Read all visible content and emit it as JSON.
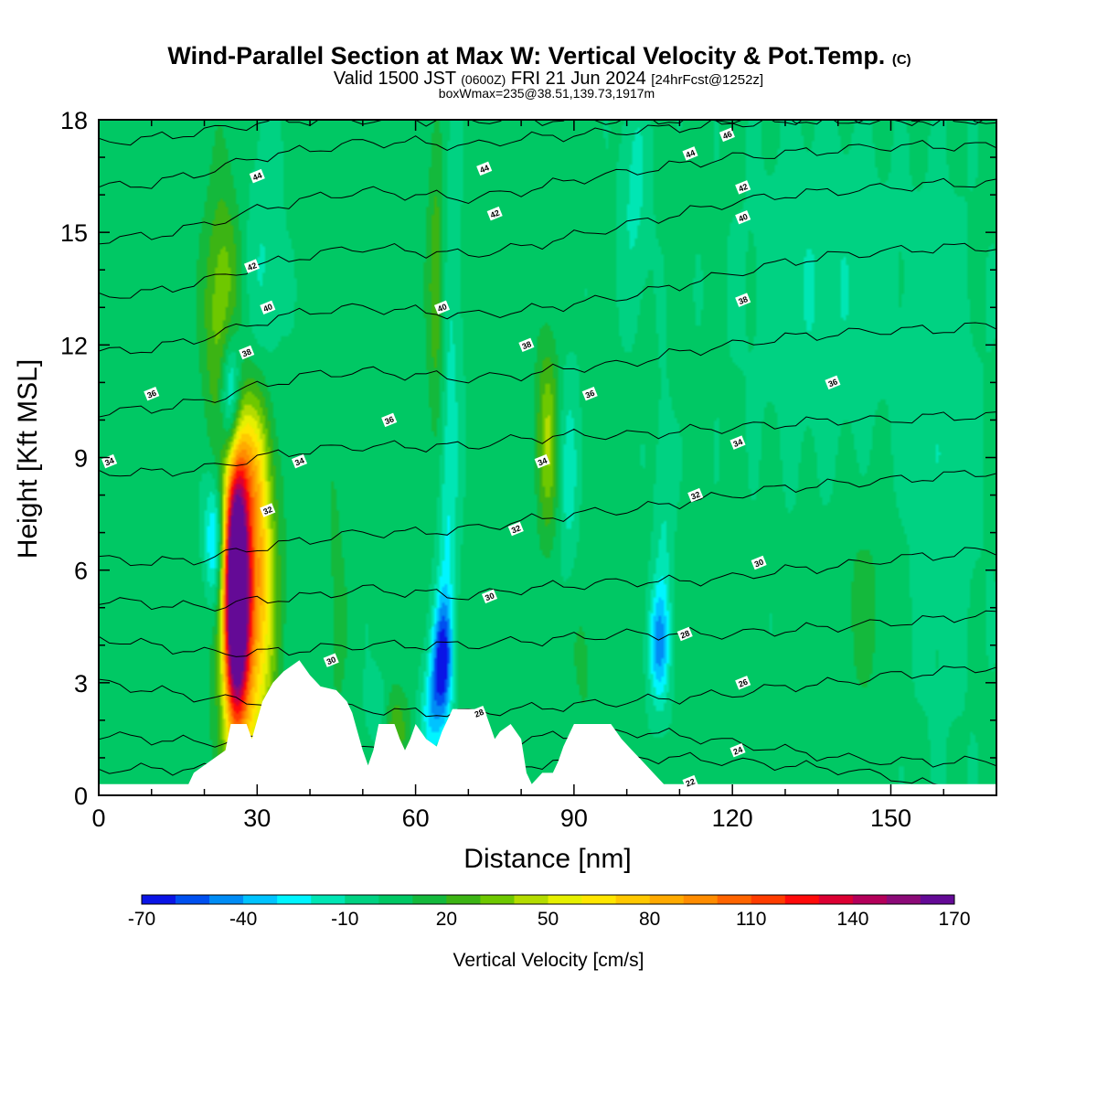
{
  "chart_data": {
    "type": "heatmap",
    "title": "Wind-Parallel Section at Max W: Vertical Velocity & Pot.Temp.",
    "title_mark": "(C)",
    "subtitle_parts": [
      "Valid 1500 JST",
      "(0600Z)",
      "FRI 21 Jun 2024",
      "[24hrFcst@1252z]"
    ],
    "subtitle2": "boxWmax=235@38.51,139.73,1917m",
    "xlabel": "Distance [nm]",
    "ylabel": "Height [Kft MSL]",
    "xlim": [
      0,
      170
    ],
    "ylim": [
      0,
      18
    ],
    "x_ticks": [
      "0",
      "30",
      "60",
      "90",
      "120",
      "150"
    ],
    "y_ticks": [
      "0",
      "3",
      "6",
      "9",
      "12",
      "15",
      "18"
    ],
    "x_tick_values": [
      0,
      30,
      60,
      90,
      120,
      150
    ],
    "y_tick_values": [
      0,
      3,
      6,
      9,
      12,
      15,
      18
    ],
    "colorbar": {
      "label": "Vertical Velocity [cm/s]",
      "tick_labels": [
        "-70",
        "-40",
        "-10",
        "20",
        "50",
        "80",
        "110",
        "140",
        "170"
      ],
      "tick_values": [
        -70,
        -40,
        -10,
        20,
        50,
        80,
        110,
        140,
        170
      ],
      "levels": [
        -70,
        -60,
        -50,
        -40,
        -30,
        -20,
        -10,
        0,
        10,
        20,
        30,
        40,
        50,
        60,
        70,
        80,
        90,
        100,
        110,
        120,
        130,
        140,
        150,
        160,
        170
      ],
      "colors": [
        "#0a14e6",
        "#0050f0",
        "#008cf5",
        "#00c3ff",
        "#00f5ff",
        "#00e6b4",
        "#00d282",
        "#00c864",
        "#14b93c",
        "#3cb414",
        "#6ec800",
        "#b4dc00",
        "#e6f000",
        "#ffe600",
        "#ffc800",
        "#ffaa00",
        "#ff8c00",
        "#ff6400",
        "#ff3c00",
        "#ff0a0a",
        "#dc0032",
        "#b4005a",
        "#8c0a78",
        "#640a96"
      ]
    },
    "terrain": [
      [
        0,
        0.3
      ],
      [
        17,
        0.3
      ],
      [
        18,
        0.6
      ],
      [
        21,
        0.9
      ],
      [
        24,
        1.2
      ],
      [
        25,
        1.9
      ],
      [
        28,
        1.9
      ],
      [
        29,
        1.5
      ],
      [
        31,
        2.5
      ],
      [
        33,
        3.0
      ],
      [
        35,
        3.3
      ],
      [
        38,
        3.6
      ],
      [
        40,
        3.2
      ],
      [
        42,
        2.9
      ],
      [
        45,
        2.8
      ],
      [
        47,
        2.5
      ],
      [
        48,
        2.2
      ],
      [
        49,
        1.7
      ],
      [
        50,
        1.2
      ],
      [
        51,
        0.8
      ],
      [
        52,
        1.2
      ],
      [
        53,
        1.9
      ],
      [
        56,
        1.9
      ],
      [
        57,
        1.5
      ],
      [
        58,
        1.2
      ],
      [
        59,
        1.5
      ],
      [
        60,
        1.9
      ],
      [
        62,
        1.5
      ],
      [
        64,
        1.3
      ],
      [
        65,
        1.7
      ],
      [
        67,
        2.3
      ],
      [
        73,
        2.3
      ],
      [
        74,
        1.9
      ],
      [
        75,
        1.5
      ],
      [
        76,
        1.7
      ],
      [
        78,
        1.9
      ],
      [
        80,
        1.5
      ],
      [
        81,
        0.6
      ],
      [
        82,
        0.3
      ],
      [
        84,
        0.6
      ],
      [
        86,
        0.6
      ],
      [
        87,
        0.9
      ],
      [
        88,
        1.3
      ],
      [
        89,
        1.6
      ],
      [
        90,
        1.9
      ],
      [
        97,
        1.9
      ],
      [
        99,
        1.5
      ],
      [
        101,
        1.2
      ],
      [
        103,
        0.9
      ],
      [
        105,
        0.6
      ],
      [
        107,
        0.3
      ],
      [
        170,
        0.3
      ]
    ],
    "features": [
      {
        "x": 26.0,
        "y": 5.5,
        "sx": 1.6,
        "sy": 2.4,
        "v": 205
      },
      {
        "x": 30.0,
        "y": 6.5,
        "sx": 2.4,
        "sy": 3.2,
        "v": 62
      },
      {
        "x": 27.5,
        "y": 4.0,
        "sx": 3.5,
        "sy": 3.2,
        "v": 40
      },
      {
        "x": 22.0,
        "y": 6.8,
        "sx": 1.4,
        "sy": 1.2,
        "v": -45
      },
      {
        "x": 25.0,
        "y": 10.5,
        "sx": 1.4,
        "sy": 1.3,
        "v": -62
      },
      {
        "x": 23.5,
        "y": 12.8,
        "sx": 2.4,
        "sy": 2.4,
        "v": 40
      },
      {
        "x": 28.0,
        "y": 9.0,
        "sx": 2.5,
        "sy": 1.3,
        "v": 30
      },
      {
        "x": 29.0,
        "y": 11.0,
        "sx": 3.0,
        "sy": 3.0,
        "v": -16
      },
      {
        "x": 32.0,
        "y": 14.5,
        "sx": 2.0,
        "sy": 3.0,
        "v": -10
      },
      {
        "x": 65.0,
        "y": 3.6,
        "sx": 1.3,
        "sy": 1.1,
        "v": -62
      },
      {
        "x": 63.0,
        "y": 2.2,
        "sx": 1.5,
        "sy": 1.0,
        "v": -32
      },
      {
        "x": 66.0,
        "y": 6.0,
        "sx": 1.2,
        "sy": 2.5,
        "v": -20
      },
      {
        "x": 64.0,
        "y": 13.5,
        "sx": 1.2,
        "sy": 2.5,
        "v": 30
      },
      {
        "x": 66.5,
        "y": 12.0,
        "sx": 1.5,
        "sy": 3.5,
        "v": -16
      },
      {
        "x": 85.0,
        "y": 9.5,
        "sx": 1.5,
        "sy": 1.8,
        "v": 38
      },
      {
        "x": 89.0,
        "y": 8.5,
        "sx": 1.5,
        "sy": 2.0,
        "v": -18
      },
      {
        "x": 106.0,
        "y": 4.0,
        "sx": 1.4,
        "sy": 1.1,
        "v": -42
      },
      {
        "x": 107.0,
        "y": 7.0,
        "sx": 1.2,
        "sy": 2.5,
        "v": -14
      },
      {
        "x": 101.5,
        "y": 16.0,
        "sx": 2.0,
        "sy": 2.2,
        "v": -16
      },
      {
        "x": 137.0,
        "y": 13.5,
        "sx": 10.0,
        "sy": 3.0,
        "v": -12
      },
      {
        "x": 160.0,
        "y": 9.0,
        "sx": 5.0,
        "sy": 5.0,
        "v": -10
      },
      {
        "x": 145.0,
        "y": 5.0,
        "sx": 4.0,
        "sy": 2.0,
        "v": 10
      },
      {
        "x": 45.0,
        "y": 5.0,
        "sx": 1.5,
        "sy": 3.0,
        "v": 10
      },
      {
        "x": 56.0,
        "y": 1.8,
        "sx": 2.0,
        "sy": 0.8,
        "v": 25
      },
      {
        "x": 53.0,
        "y": 2.3,
        "sx": 1.5,
        "sy": 0.7,
        "v": -18
      },
      {
        "x": 92.0,
        "y": 4.0,
        "sx": 2.0,
        "sy": 2.0,
        "v": 10
      }
    ],
    "isentropes": [
      {
        "level": 22,
        "y": [
          0.7,
          0.7,
          0.7,
          0.8,
          0.6,
          0.4,
          0.3,
          0.5,
          0.8,
          0.9,
          1.0,
          1.0,
          0.9,
          0.8,
          0.7,
          0.5,
          0.2,
          0.1,
          0.1
        ]
      },
      {
        "level": 24,
        "y": [
          1.6,
          1.5,
          1.4,
          1.5,
          1.4,
          1.2,
          1.1,
          1.3,
          1.5,
          1.6,
          1.7,
          1.6,
          1.4,
          1.2,
          1.0,
          0.9,
          0.9,
          0.9,
          0.9
        ]
      },
      {
        "level": 26,
        "y": [
          3.0,
          2.8,
          2.6,
          2.5,
          2.4,
          2.3,
          2.2,
          2.2,
          2.3,
          2.4,
          2.5,
          2.6,
          2.7,
          2.9,
          3.0,
          3.2,
          3.3,
          3.4,
          3.4
        ]
      },
      {
        "level": 28,
        "y": [
          4.2,
          4.0,
          3.8,
          3.8,
          3.9,
          4.0,
          4.0,
          4.0,
          4.1,
          4.2,
          4.3,
          4.3,
          4.3,
          4.4,
          4.5,
          4.6,
          4.7,
          4.8,
          4.8
        ]
      },
      {
        "level": 30,
        "y": [
          5.2,
          5.1,
          5.0,
          5.2,
          5.3,
          5.5,
          5.4,
          5.3,
          5.5,
          5.6,
          5.7,
          5.7,
          5.8,
          6.0,
          6.1,
          6.3,
          6.4,
          6.5,
          6.5
        ]
      },
      {
        "level": 32,
        "y": [
          6.3,
          6.2,
          6.3,
          6.6,
          6.8,
          7.0,
          7.0,
          7.1,
          7.3,
          7.5,
          7.6,
          7.8,
          8.0,
          8.2,
          8.3,
          8.4,
          8.5,
          8.6,
          8.6
        ]
      },
      {
        "level": 34,
        "y": [
          8.6,
          8.6,
          8.7,
          9.0,
          9.2,
          9.3,
          9.3,
          9.3,
          9.5,
          9.6,
          9.6,
          9.7,
          9.8,
          9.9,
          10.0,
          10.0,
          10.1,
          10.1,
          10.1
        ]
      },
      {
        "level": 36,
        "y": [
          10.2,
          10.3,
          10.5,
          10.9,
          11.2,
          11.3,
          11.2,
          11.1,
          11.2,
          11.4,
          11.5,
          11.8,
          12.0,
          12.2,
          12.3,
          12.4,
          12.4,
          12.5,
          12.5
        ]
      },
      {
        "level": 38,
        "y": [
          11.8,
          11.9,
          12.2,
          12.6,
          12.9,
          13.0,
          12.9,
          12.8,
          12.9,
          13.1,
          13.3,
          13.6,
          13.9,
          14.2,
          14.4,
          14.5,
          14.6,
          14.6,
          14.6
        ]
      },
      {
        "level": 40,
        "y": [
          13.3,
          13.4,
          13.7,
          14.1,
          14.4,
          14.6,
          14.5,
          14.4,
          14.6,
          14.9,
          15.2,
          15.5,
          15.8,
          16.0,
          16.1,
          16.2,
          16.3,
          16.3,
          16.3
        ]
      },
      {
        "level": 42,
        "y": [
          14.8,
          14.9,
          15.2,
          15.6,
          15.9,
          16.1,
          16.0,
          15.9,
          16.1,
          16.4,
          16.6,
          16.8,
          17.0,
          17.1,
          17.2,
          17.3,
          17.3,
          17.3,
          17.3
        ]
      },
      {
        "level": 44,
        "y": [
          16.2,
          16.3,
          16.6,
          17.0,
          17.2,
          17.4,
          17.4,
          17.3,
          17.5,
          17.6,
          17.7,
          17.8,
          17.9,
          18.0,
          18.0,
          18.0,
          18.0,
          18.0,
          18.0
        ]
      },
      {
        "level": 46,
        "y": [
          17.4,
          17.5,
          17.7,
          17.9,
          18.0,
          18.0,
          18.0,
          18.0,
          18.0,
          18.0,
          18.0,
          18.0,
          18.0,
          18.0,
          18.0,
          18.0,
          18.0,
          18.0,
          18.0
        ]
      }
    ],
    "isentrope_x": [
      0,
      10,
      20,
      30,
      40,
      50,
      60,
      70,
      80,
      90,
      100,
      110,
      120,
      130,
      140,
      150,
      160,
      165,
      170
    ],
    "isentrope_labels": [
      {
        "level": "22",
        "x": 112,
        "y": 0.35
      },
      {
        "level": "24",
        "x": 121,
        "y": 1.2
      },
      {
        "level": "26",
        "x": 122,
        "y": 3.0
      },
      {
        "level": "28",
        "x": 111,
        "y": 4.3
      },
      {
        "level": "30",
        "x": 125,
        "y": 6.2
      },
      {
        "level": "32",
        "x": 113,
        "y": 8.0
      },
      {
        "level": "34",
        "x": 121,
        "y": 9.4
      },
      {
        "level": "36",
        "x": 139,
        "y": 11.0
      },
      {
        "level": "38",
        "x": 122,
        "y": 13.2
      },
      {
        "level": "40",
        "x": 122,
        "y": 15.4
      },
      {
        "level": "42",
        "x": 122,
        "y": 16.2
      },
      {
        "level": "44",
        "x": 112,
        "y": 17.1
      },
      {
        "level": "46",
        "x": 119,
        "y": 17.6
      },
      {
        "level": "34",
        "x": 2,
        "y": 8.9
      },
      {
        "level": "36",
        "x": 10,
        "y": 10.7
      },
      {
        "level": "38",
        "x": 28,
        "y": 11.8
      },
      {
        "level": "40",
        "x": 32,
        "y": 13.0
      },
      {
        "level": "42",
        "x": 29,
        "y": 14.1
      },
      {
        "level": "44",
        "x": 30,
        "y": 16.5
      },
      {
        "level": "34",
        "x": 38,
        "y": 8.9
      },
      {
        "level": "32",
        "x": 32,
        "y": 7.6
      },
      {
        "level": "36",
        "x": 55,
        "y": 10.0
      },
      {
        "level": "30",
        "x": 44,
        "y": 3.6
      },
      {
        "level": "42",
        "x": 75,
        "y": 15.5
      },
      {
        "level": "44",
        "x": 73,
        "y": 16.7
      },
      {
        "level": "40",
        "x": 65,
        "y": 13.0
      },
      {
        "level": "38",
        "x": 81,
        "y": 12.0
      },
      {
        "level": "36",
        "x": 93,
        "y": 10.7
      },
      {
        "level": "34",
        "x": 84,
        "y": 8.9
      },
      {
        "level": "32",
        "x": 79,
        "y": 7.1
      },
      {
        "level": "30",
        "x": 74,
        "y": 5.3
      },
      {
        "level": "28",
        "x": 72,
        "y": 2.2
      }
    ]
  }
}
